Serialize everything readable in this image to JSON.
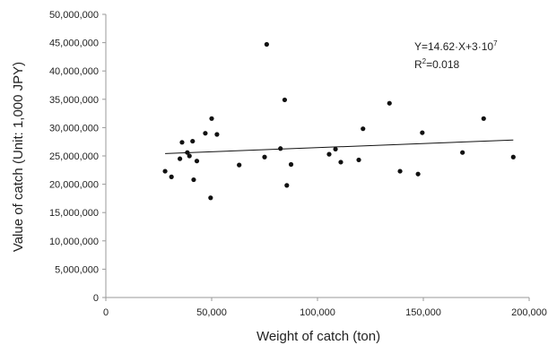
{
  "chart_data": {
    "type": "scatter",
    "title": "",
    "xlabel": "Weight of catch (ton)",
    "ylabel": "Value of catch (Unit: 1,000 JPY)",
    "xlim": [
      0,
      200000
    ],
    "ylim": [
      0,
      50000000
    ],
    "x_ticks": [
      "0",
      "50,000",
      "100,000",
      "150,000",
      "200,000"
    ],
    "y_ticks": [
      "0",
      "5,000,000",
      "10,000,000",
      "15,000,000",
      "20,000,000",
      "25,000,000",
      "30,000,000",
      "35,000,000",
      "40,000,000",
      "45,000,000",
      "50,000,000"
    ],
    "grid": false,
    "legend": "none",
    "marker_color": "#111111",
    "points": [
      {
        "x": 28000,
        "y": 22300000
      },
      {
        "x": 31000,
        "y": 21300000
      },
      {
        "x": 35000,
        "y": 24500000
      },
      {
        "x": 36000,
        "y": 27400000
      },
      {
        "x": 38500,
        "y": 25600000
      },
      {
        "x": 39500,
        "y": 25000000
      },
      {
        "x": 41000,
        "y": 27600000
      },
      {
        "x": 41500,
        "y": 20800000
      },
      {
        "x": 43000,
        "y": 24100000
      },
      {
        "x": 47000,
        "y": 29000000
      },
      {
        "x": 49500,
        "y": 17600000
      },
      {
        "x": 50000,
        "y": 31600000
      },
      {
        "x": 52500,
        "y": 28800000
      },
      {
        "x": 63000,
        "y": 23400000
      },
      {
        "x": 75000,
        "y": 24800000
      },
      {
        "x": 76000,
        "y": 44700000
      },
      {
        "x": 82500,
        "y": 26300000
      },
      {
        "x": 84500,
        "y": 34900000
      },
      {
        "x": 85500,
        "y": 19800000
      },
      {
        "x": 87500,
        "y": 23500000
      },
      {
        "x": 105500,
        "y": 25300000
      },
      {
        "x": 108500,
        "y": 26200000
      },
      {
        "x": 111000,
        "y": 23900000
      },
      {
        "x": 119500,
        "y": 24300000
      },
      {
        "x": 121500,
        "y": 29800000
      },
      {
        "x": 134000,
        "y": 34300000
      },
      {
        "x": 139000,
        "y": 22300000
      },
      {
        "x": 147500,
        "y": 21800000
      },
      {
        "x": 149500,
        "y": 29100000
      },
      {
        "x": 168500,
        "y": 25600000
      },
      {
        "x": 178500,
        "y": 31600000
      },
      {
        "x": 192500,
        "y": 24800000
      }
    ],
    "trendline": {
      "slope": 14.62,
      "intercept": 25000000,
      "x_range": [
        28000,
        192500
      ],
      "color": "#111111"
    },
    "annotations": {
      "equation_prefix": "Y=14.62·X+3·10",
      "equation_exponent": "7",
      "r2_prefix": "R",
      "r2_exponent": "2",
      "r2_suffix": "=0.018"
    }
  }
}
